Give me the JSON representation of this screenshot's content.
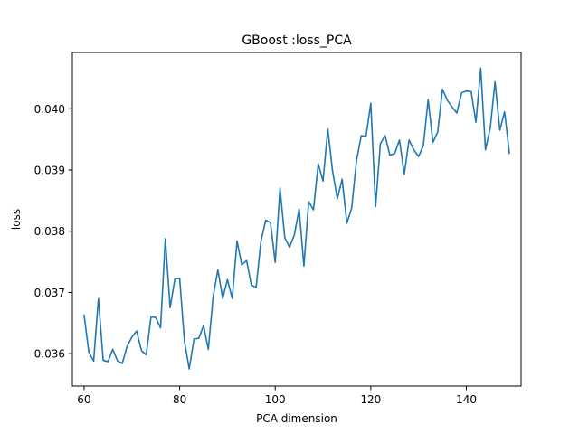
{
  "chart_data": {
    "type": "line",
    "title": "GBoost :loss_PCA",
    "xlabel": "PCA dimension",
    "ylabel": "loss",
    "xlim": [
      57.55,
      151.45
    ],
    "ylim": [
      0.03547,
      0.04092
    ],
    "grid": false,
    "x_ticks": [
      60,
      80,
      100,
      120,
      140
    ],
    "x_tick_labels": [
      "60",
      "80",
      "100",
      "120",
      "140"
    ],
    "y_ticks": [
      0.036,
      0.037,
      0.038,
      0.039,
      0.04
    ],
    "y_tick_labels": [
      "0.036",
      "0.037",
      "0.038",
      "0.039",
      "0.040"
    ],
    "series": [
      {
        "color": "#1f77b4",
        "x": [
          60,
          61,
          62,
          63,
          64,
          65,
          66,
          67,
          68,
          69,
          70,
          71,
          72,
          73,
          74,
          75,
          76,
          77,
          78,
          79,
          80,
          81,
          82,
          83,
          84,
          85,
          86,
          87,
          88,
          89,
          90,
          91,
          92,
          93,
          94,
          95,
          96,
          97,
          98,
          99,
          100,
          101,
          102,
          103,
          104,
          105,
          106,
          107,
          108,
          109,
          110,
          111,
          112,
          113,
          114,
          115,
          116,
          117,
          118,
          119,
          120,
          121,
          122,
          123,
          124,
          125,
          126,
          127,
          128,
          129,
          130,
          131,
          132,
          133,
          134,
          135,
          136,
          137,
          138,
          139,
          140,
          141,
          142,
          143,
          144,
          145,
          146,
          147,
          148,
          149
        ],
        "y": [
          0.03663,
          0.03602,
          0.03588,
          0.0369,
          0.03589,
          0.03587,
          0.03607,
          0.03588,
          0.03584,
          0.03612,
          0.03627,
          0.03637,
          0.03605,
          0.03598,
          0.0366,
          0.03659,
          0.03642,
          0.03788,
          0.03675,
          0.03722,
          0.03723,
          0.0362,
          0.03575,
          0.03624,
          0.03625,
          0.03646,
          0.03607,
          0.03693,
          0.03737,
          0.0369,
          0.03721,
          0.0369,
          0.03784,
          0.03745,
          0.03752,
          0.03712,
          0.03708,
          0.03783,
          0.03818,
          0.03814,
          0.03749,
          0.0387,
          0.03789,
          0.03774,
          0.03794,
          0.03836,
          0.03743,
          0.03848,
          0.03835,
          0.0391,
          0.03882,
          0.03967,
          0.03898,
          0.03853,
          0.03885,
          0.03813,
          0.03838,
          0.03915,
          0.03956,
          0.03955,
          0.04009,
          0.0384,
          0.03943,
          0.03956,
          0.03924,
          0.03927,
          0.03949,
          0.03893,
          0.03949,
          0.03933,
          0.03922,
          0.0394,
          0.04015,
          0.03945,
          0.03962,
          0.04032,
          0.04014,
          0.04003,
          0.03993,
          0.04026,
          0.04029,
          0.04028,
          0.03978,
          0.04066,
          0.03933,
          0.03969,
          0.04044,
          0.03965,
          0.03995,
          0.03927
        ]
      }
    ]
  }
}
